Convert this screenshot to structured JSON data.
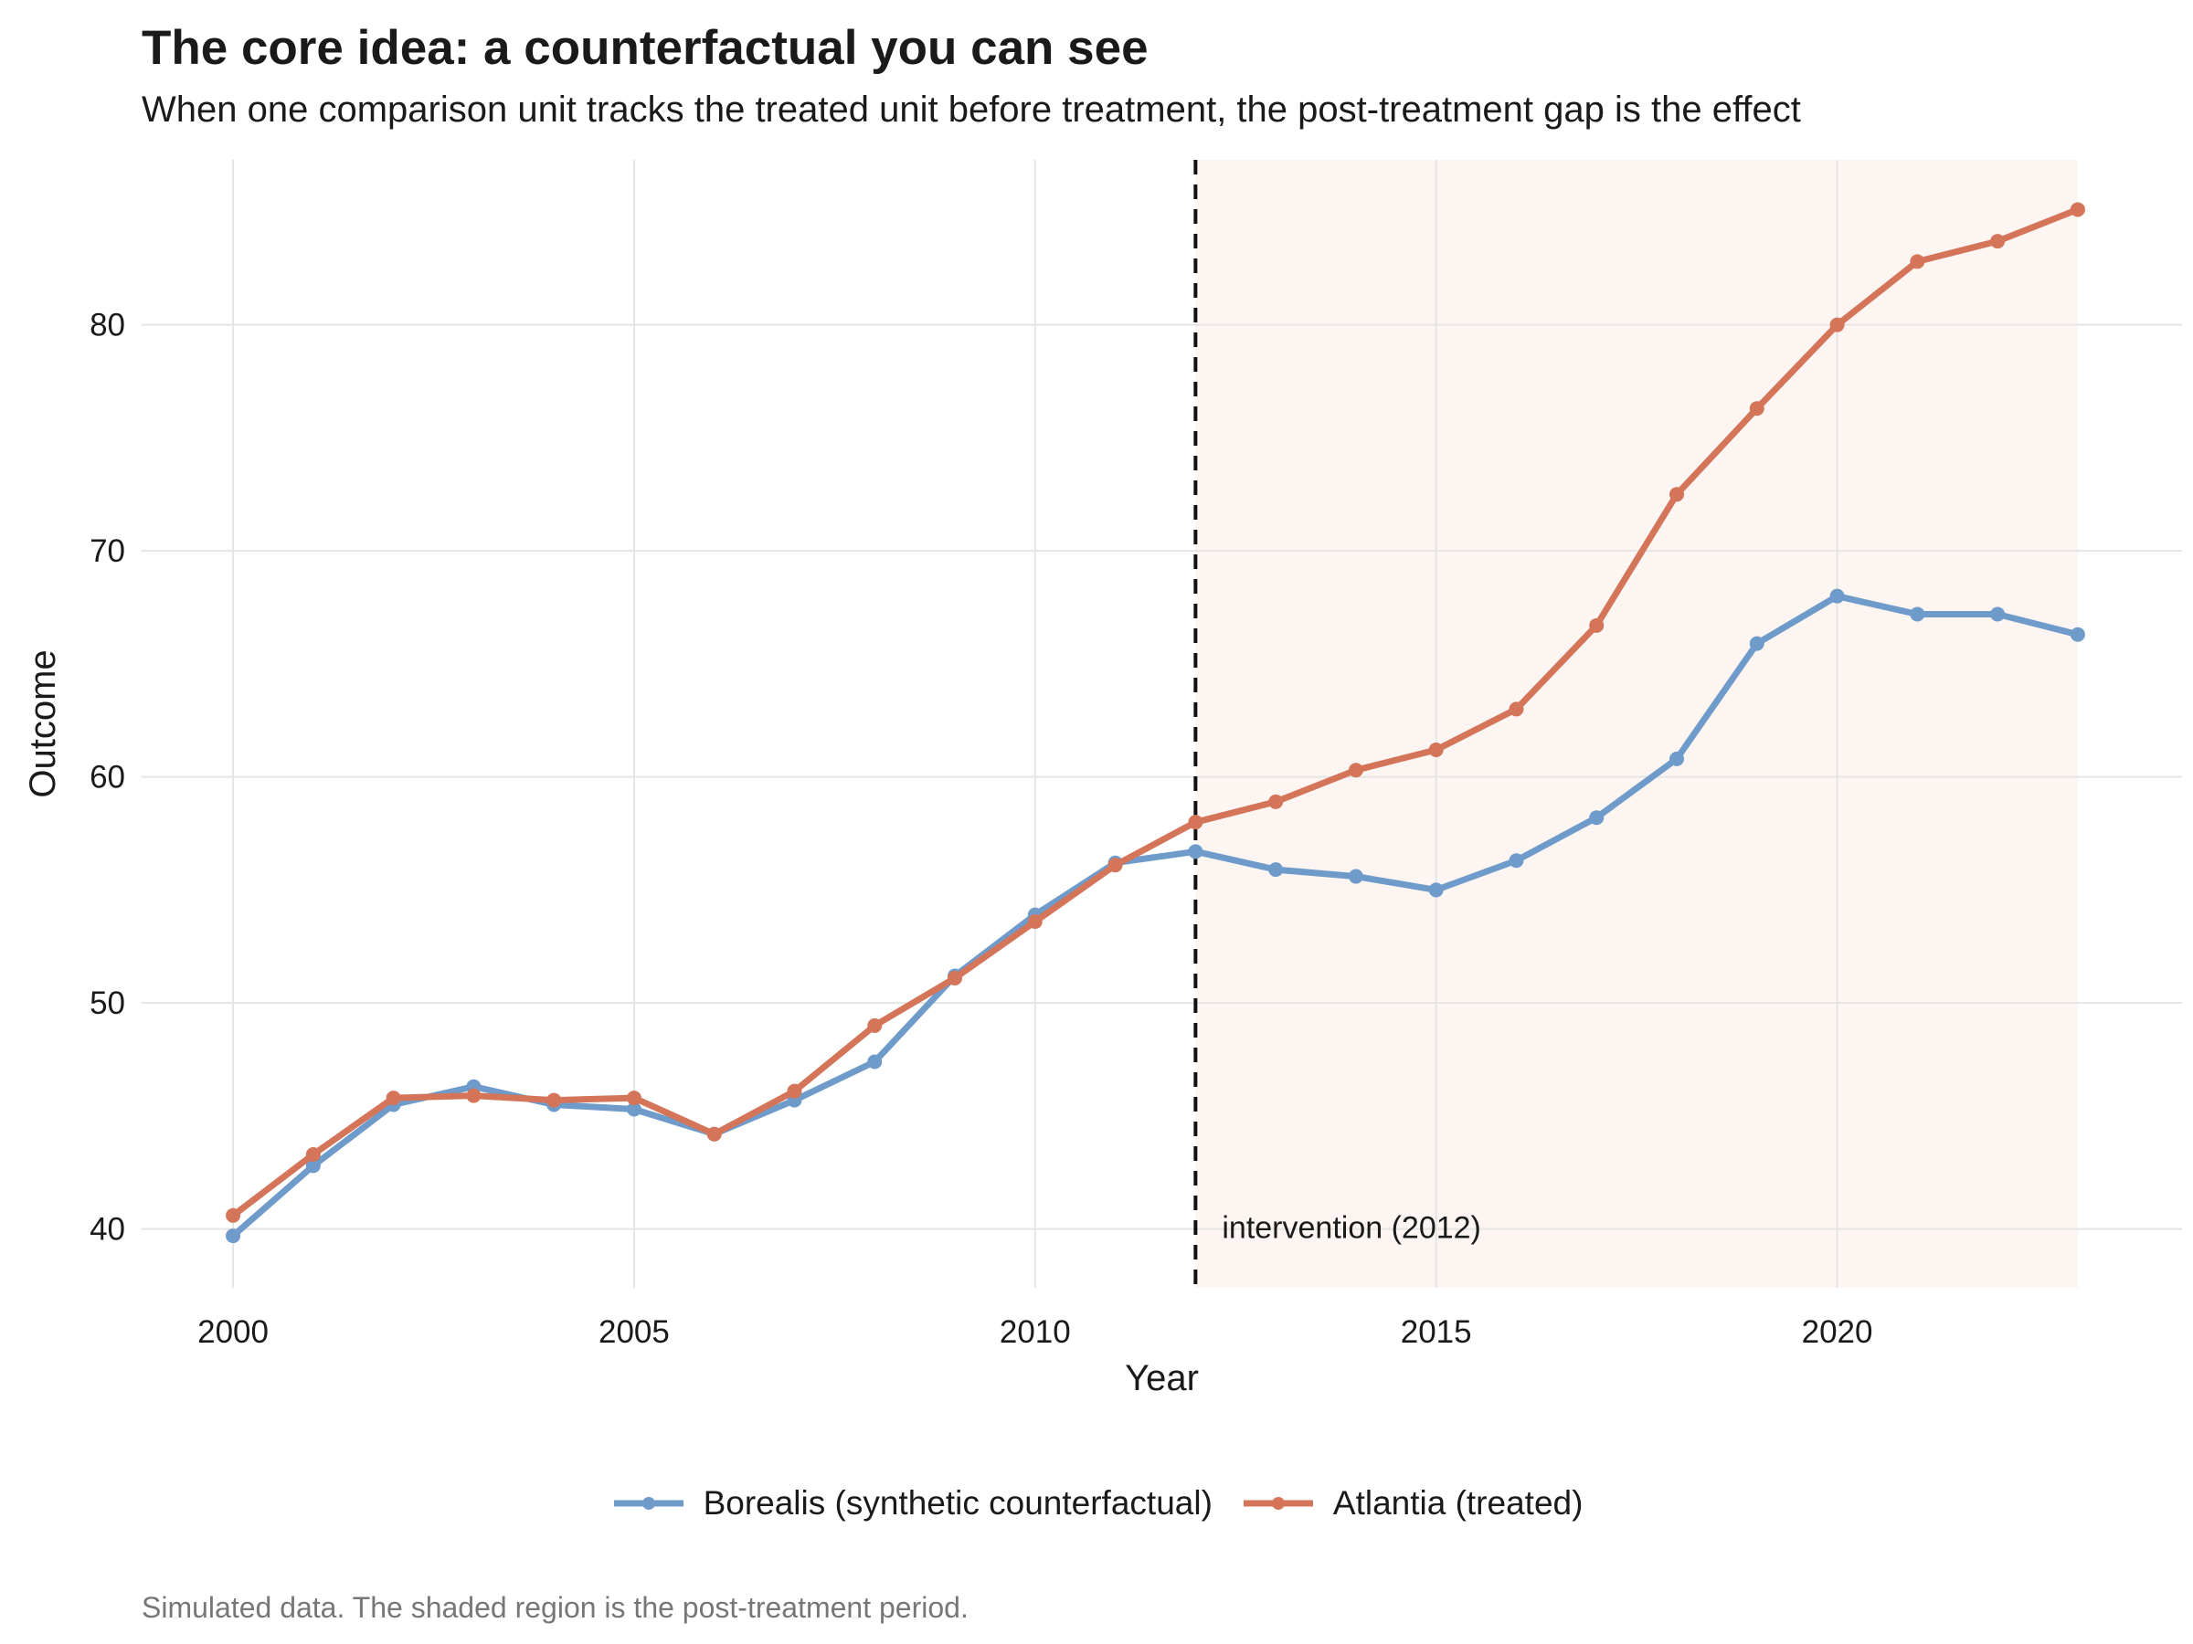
{
  "title": "The core idea: a counterfactual you can see",
  "subtitle": "When one comparison unit tracks the treated unit before treatment, the post-treatment gap is the effect",
  "caption": "Simulated data. The shaded region is the post-treatment period.",
  "colors": {
    "borealis": "#6f9bcb",
    "atlantia": "#d4755a",
    "shade": "#fcf5f2",
    "grid": "#e5e5e5",
    "vline": "#111111"
  },
  "chart_data": {
    "type": "line",
    "xlabel": "Year",
    "ylabel": "Outcome",
    "xlim": [
      1998.86,
      2024.3
    ],
    "ylim": [
      37.4,
      87.3
    ],
    "xticks": [
      2000,
      2005,
      2010,
      2015,
      2020
    ],
    "yticks": [
      40,
      50,
      60,
      70,
      80
    ],
    "x": [
      2000,
      2001,
      2002,
      2003,
      2004,
      2005,
      2006,
      2007,
      2008,
      2009,
      2010,
      2011,
      2012,
      2013,
      2014,
      2015,
      2016,
      2017,
      2018,
      2019,
      2020,
      2021,
      2022,
      2023
    ],
    "series": [
      {
        "name": "Borealis (synthetic counterfactual)",
        "color_key": "borealis",
        "values": [
          39.7,
          42.8,
          45.5,
          46.3,
          45.5,
          45.3,
          44.2,
          45.7,
          47.4,
          51.2,
          53.9,
          56.2,
          56.7,
          55.9,
          55.6,
          55.0,
          56.3,
          58.2,
          60.8,
          65.9,
          68.0,
          67.2,
          67.2,
          66.3
        ]
      },
      {
        "name": "Atlantia (treated)",
        "color_key": "atlantia",
        "values": [
          40.6,
          43.3,
          45.8,
          45.9,
          45.7,
          45.8,
          44.2,
          46.1,
          49.0,
          51.1,
          53.6,
          56.1,
          58.0,
          58.9,
          60.3,
          61.2,
          63.0,
          66.7,
          72.5,
          76.3,
          80.0,
          82.8,
          83.7,
          85.1
        ]
      }
    ],
    "intervention": {
      "x": 2012,
      "label": "intervention (2012)"
    },
    "shade": {
      "from": 2012,
      "to": 2023
    },
    "grid": true,
    "legend_position": "bottom"
  }
}
